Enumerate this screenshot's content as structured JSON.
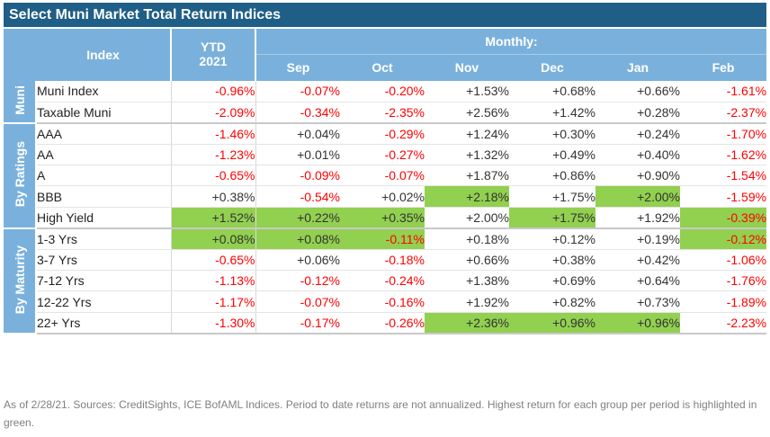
{
  "title": "Select Muni Market Total Return Indices",
  "colors": {
    "header_bg": "#7ab1dc",
    "title_bg": "#1f5e86",
    "highlight": "#92d050",
    "negative": "#ff0000"
  },
  "header": {
    "index": "Index",
    "ytd_line1": "YTD",
    "ytd_line2": "2021",
    "monthly": "Monthly:",
    "months": [
      "Sep",
      "Oct",
      "Nov",
      "Dec",
      "Jan",
      "Feb"
    ]
  },
  "groups": [
    {
      "label": "Muni",
      "rows": [
        {
          "name": "Muni Index",
          "values": [
            "-0.96%",
            "-0.07%",
            "-0.20%",
            "+1.53%",
            "+0.68%",
            "+0.66%",
            "-1.61%"
          ],
          "highlight": [
            false,
            false,
            false,
            false,
            false,
            false,
            false
          ]
        },
        {
          "name": "Taxable Muni",
          "values": [
            "-2.09%",
            "-0.34%",
            "-2.35%",
            "+2.56%",
            "+1.42%",
            "+0.28%",
            "-2.37%"
          ],
          "highlight": [
            false,
            false,
            false,
            false,
            false,
            false,
            false
          ]
        }
      ]
    },
    {
      "label": "By Ratings",
      "rows": [
        {
          "name": "AAA",
          "values": [
            "-1.46%",
            "+0.04%",
            "-0.29%",
            "+1.24%",
            "+0.30%",
            "+0.24%",
            "-1.70%"
          ],
          "highlight": [
            false,
            false,
            false,
            false,
            false,
            false,
            false
          ]
        },
        {
          "name": "AA",
          "values": [
            "-1.23%",
            "+0.01%",
            "-0.27%",
            "+1.32%",
            "+0.49%",
            "+0.40%",
            "-1.62%"
          ],
          "highlight": [
            false,
            false,
            false,
            false,
            false,
            false,
            false
          ]
        },
        {
          "name": "A",
          "values": [
            "-0.65%",
            "-0.09%",
            "-0.07%",
            "+1.87%",
            "+0.86%",
            "+0.90%",
            "-1.54%"
          ],
          "highlight": [
            false,
            false,
            false,
            false,
            false,
            false,
            false
          ]
        },
        {
          "name": "BBB",
          "values": [
            "+0.38%",
            "-0.54%",
            "+0.02%",
            "+2.18%",
            "+1.75%",
            "+2.00%",
            "-1.59%"
          ],
          "highlight": [
            false,
            false,
            false,
            true,
            false,
            true,
            false
          ]
        },
        {
          "name": "High Yield",
          "values": [
            "+1.52%",
            "+0.22%",
            "+0.35%",
            "+2.00%",
            "+1.75%",
            "+1.92%",
            "-0.39%"
          ],
          "highlight": [
            true,
            true,
            true,
            false,
            true,
            false,
            true
          ]
        }
      ]
    },
    {
      "label": "By Maturity",
      "rows": [
        {
          "name": "1-3 Yrs",
          "values": [
            "+0.08%",
            "+0.08%",
            "-0.11%",
            "+0.18%",
            "+0.12%",
            "+0.19%",
            "-0.12%"
          ],
          "highlight": [
            true,
            true,
            true,
            false,
            false,
            false,
            true
          ]
        },
        {
          "name": "3-7 Yrs",
          "values": [
            "-0.65%",
            "+0.06%",
            "-0.18%",
            "+0.66%",
            "+0.38%",
            "+0.42%",
            "-1.06%"
          ],
          "highlight": [
            false,
            false,
            false,
            false,
            false,
            false,
            false
          ]
        },
        {
          "name": "7-12 Yrs",
          "values": [
            "-1.13%",
            "-0.12%",
            "-0.24%",
            "+1.38%",
            "+0.69%",
            "+0.64%",
            "-1.76%"
          ],
          "highlight": [
            false,
            false,
            false,
            false,
            false,
            false,
            false
          ]
        },
        {
          "name": "12-22 Yrs",
          "values": [
            "-1.17%",
            "-0.07%",
            "-0.16%",
            "+1.92%",
            "+0.82%",
            "+0.73%",
            "-1.89%"
          ],
          "highlight": [
            false,
            false,
            false,
            false,
            false,
            false,
            false
          ]
        },
        {
          "name": "22+ Yrs",
          "values": [
            "-1.30%",
            "-0.17%",
            "-0.26%",
            "+2.36%",
            "+0.96%",
            "+0.96%",
            "-2.23%"
          ],
          "highlight": [
            false,
            false,
            false,
            true,
            true,
            true,
            false
          ]
        }
      ]
    }
  ],
  "footnote": "As of 2/28/21. Sources: CreditSights, ICE BofAML Indices. Period to date returns are not annualized. Highest return for each group per period is highlighted in green."
}
